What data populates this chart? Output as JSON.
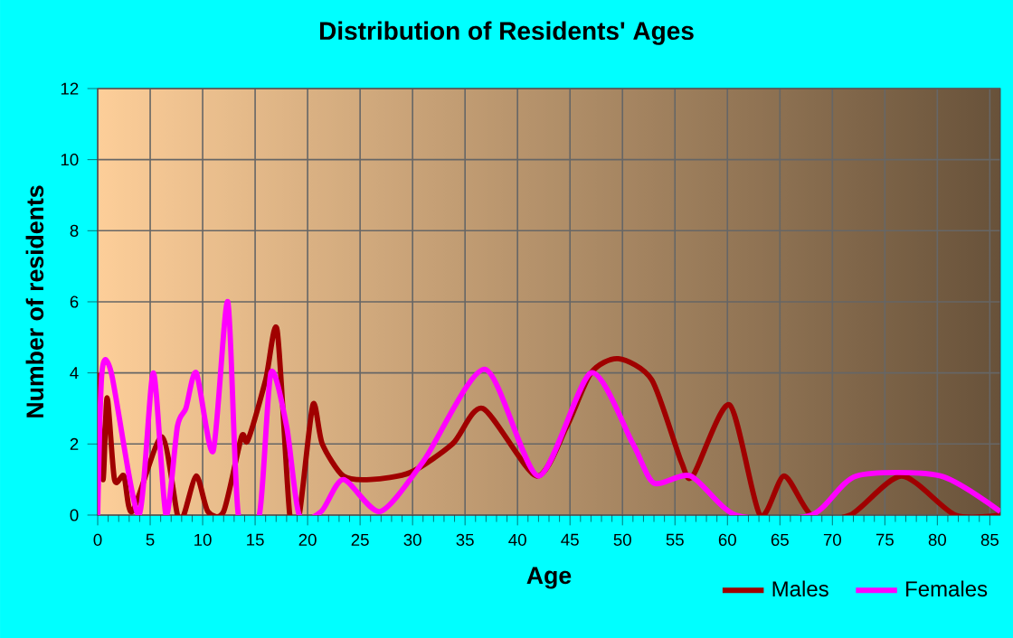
{
  "chart_data": {
    "type": "line",
    "title": "Distribution of Residents' Ages",
    "xlabel": "Age",
    "ylabel": "Number of residents",
    "xlim": [
      0,
      86
    ],
    "xticks": [
      0,
      5,
      10,
      15,
      20,
      25,
      30,
      35,
      40,
      45,
      50,
      55,
      60,
      65,
      70,
      75,
      80,
      85
    ],
    "ylim": [
      0,
      12
    ],
    "yticks": [
      0,
      2,
      4,
      6,
      8,
      10,
      12
    ],
    "grid": true,
    "legend": "bottom right",
    "series": [
      {
        "name": "Males",
        "color": "#a00000",
        "x": [
          0,
          0.5,
          0.9,
          1.6,
          2.5,
          3.3,
          6.1,
          7.6,
          8.2,
          9.4,
          10.5,
          12,
          13.7,
          14.3,
          16,
          17.1,
          18.3,
          19.2,
          20.5,
          21.4,
          23.4,
          26,
          29.8,
          33.8,
          36.7,
          41.8,
          44.7,
          47,
          49.6,
          52.8,
          55.6,
          56.7,
          60.2,
          63.1,
          65.4,
          68,
          71.7,
          76.6,
          81.7,
          86
        ],
        "values": [
          4,
          1,
          3.3,
          1,
          1.1,
          0.1,
          2.2,
          0,
          0,
          1.1,
          0.1,
          0.1,
          2.2,
          2.1,
          3.8,
          5.2,
          0,
          0,
          3.1,
          2,
          1.1,
          1,
          1.2,
          2,
          3,
          1.1,
          2.5,
          4,
          4.4,
          3.8,
          1.5,
          1.1,
          3.1,
          0,
          1.1,
          0,
          0,
          1.1,
          0,
          0
        ]
      },
      {
        "name": "Females",
        "color": "#ff00ff",
        "x": [
          0,
          0.4,
          1.3,
          3.9,
          5.3,
          6.5,
          7.6,
          8.4,
          9.4,
          11,
          12.4,
          13.4,
          15.4,
          16.5,
          18,
          19.2,
          21.3,
          23.4,
          26.9,
          31,
          36.9,
          42,
          47,
          51,
          53,
          56.5,
          60.8,
          68,
          72.3,
          80.3,
          86
        ],
        "values": [
          0,
          4,
          4,
          0,
          4,
          0,
          2.5,
          3,
          4,
          1.8,
          6,
          0,
          0,
          4,
          2.5,
          0,
          0.1,
          1,
          0.1,
          1.5,
          4.1,
          1.1,
          4,
          2,
          0.9,
          1.1,
          0,
          0,
          1.1,
          1.1,
          0.1
        ]
      }
    ]
  }
}
